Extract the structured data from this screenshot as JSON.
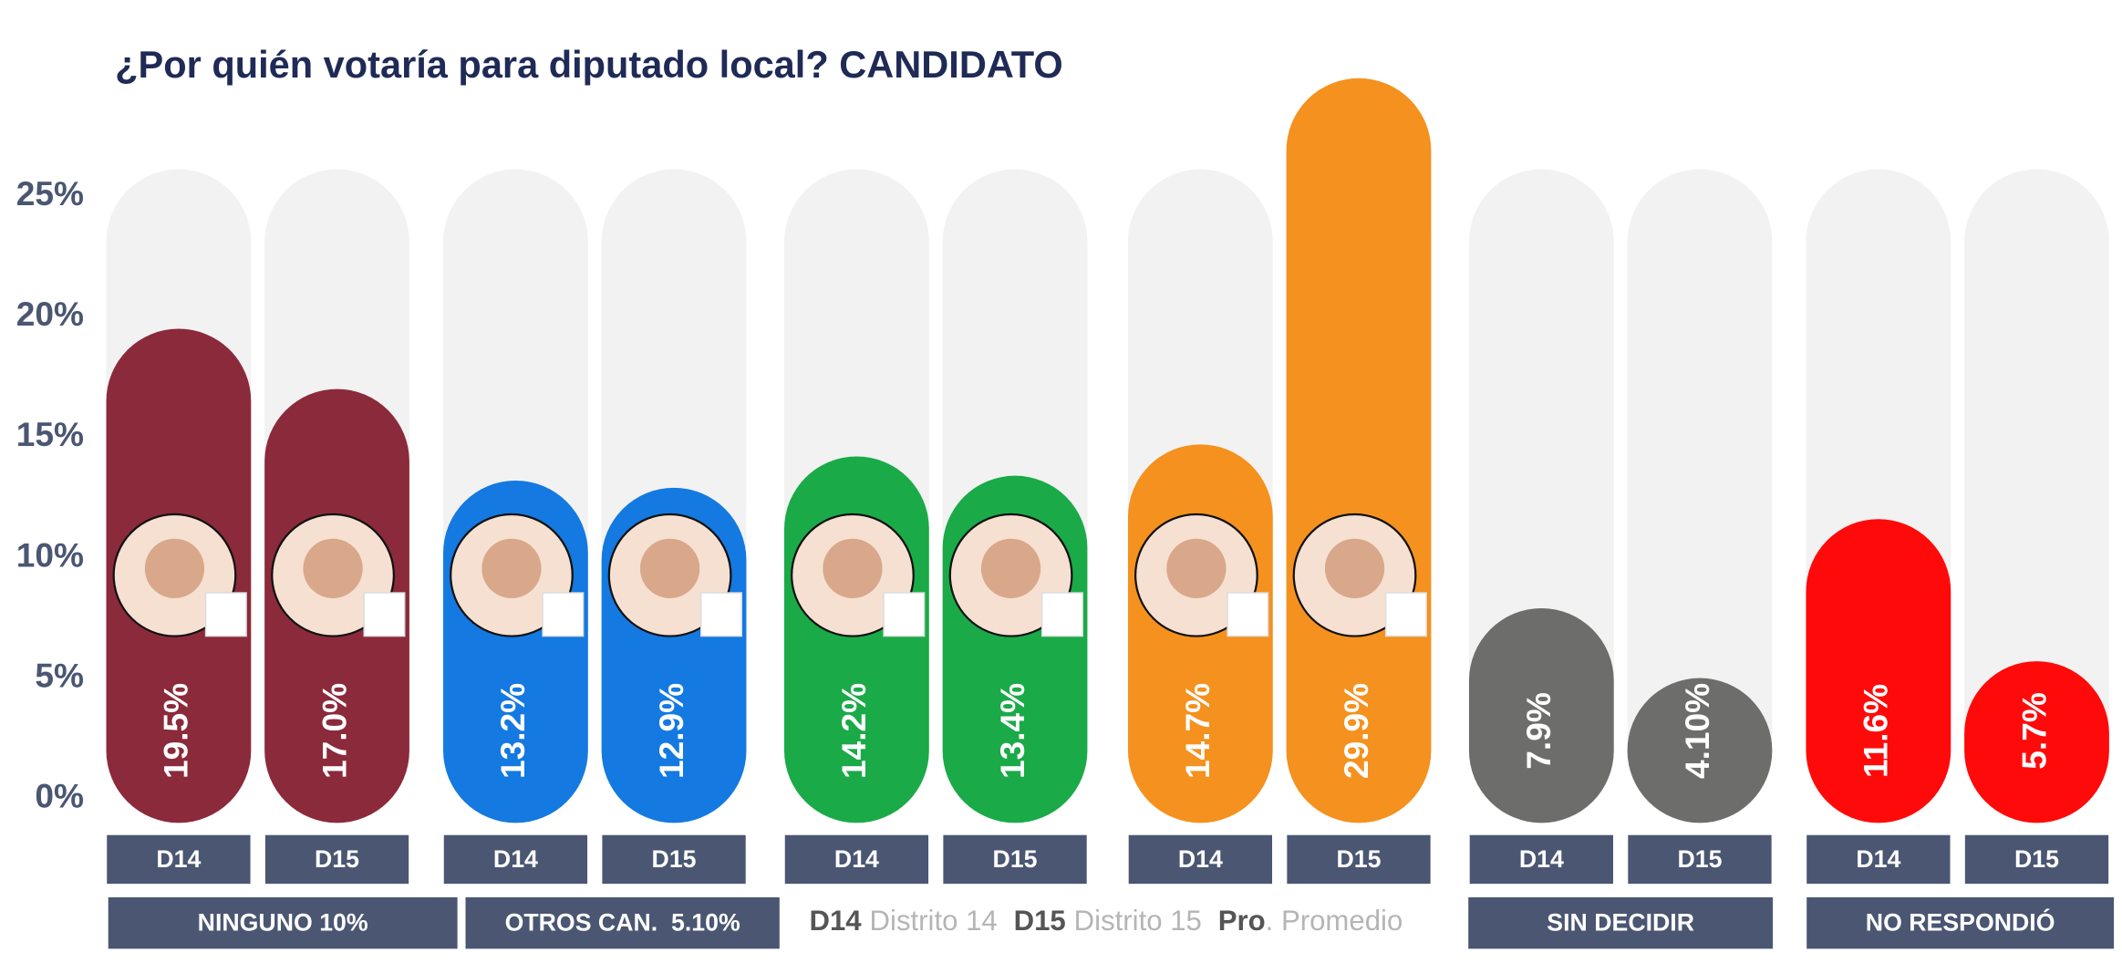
{
  "chart_data": {
    "type": "bar",
    "title": "¿Por quién votaría para diputado local? CANDIDATO",
    "categories": [
      "D14",
      "D15",
      "D14",
      "D15",
      "D14",
      "D15",
      "D14",
      "D15",
      "D14",
      "D15",
      "D14",
      "D15"
    ],
    "values": [
      19.5,
      17.0,
      13.2,
      12.9,
      14.2,
      13.4,
      14.7,
      29.9,
      7.9,
      4.1,
      11.6,
      5.7
    ],
    "value_labels": [
      "19.5%",
      "17.0%",
      "13.2%",
      "12.9%",
      "14.2%",
      "13.4%",
      "14.7%",
      "29.9%",
      "7.9%",
      "4.10%",
      "11.6%",
      "5.7%"
    ],
    "colors": [
      "#8b2a3a",
      "#8b2a3a",
      "#1479e0",
      "#1479e0",
      "#1aaa48",
      "#1aaa48",
      "#f5911e",
      "#f5911e",
      "#6d6e6c",
      "#6d6e6c",
      "#ff0a0a",
      "#ff0a0a"
    ],
    "ylim": [
      0,
      25
    ],
    "yticks": [
      {
        "value": 0,
        "label": "0%"
      },
      {
        "value": 5,
        "label": "5%"
      },
      {
        "value": 10,
        "label": "10%"
      },
      {
        "value": 15,
        "label": "15%"
      },
      {
        "value": 20,
        "label": "20%"
      },
      {
        "value": 25,
        "label": "25%"
      }
    ],
    "grid": false,
    "annotations": [
      "NINGUNO 10%",
      "OTROS CAN.  5.10%",
      "SIN DECIDIR",
      "NO RESPONDIÓ"
    ],
    "legend_note": [
      {
        "key": "D14",
        "text": "Distrito 14"
      },
      {
        "key": "D15",
        "text": "Distrito 15"
      },
      {
        "key": "Pro",
        "text": ". Promedio"
      }
    ]
  }
}
